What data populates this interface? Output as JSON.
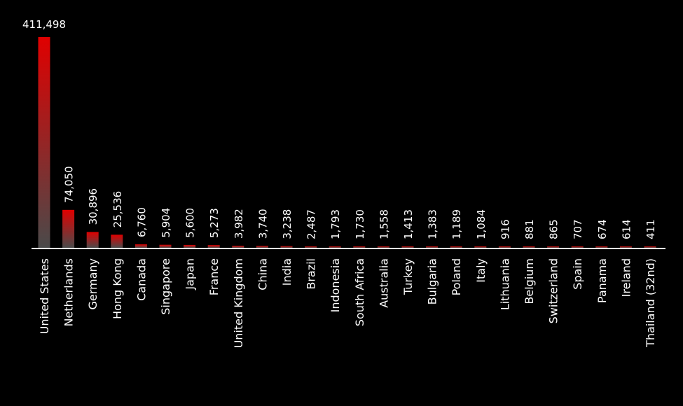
{
  "colors": {
    "background": "#000000",
    "bar_top": "#e00000",
    "bar_bottom": "#4a4a4a",
    "text": "#ffffff",
    "axis": "#ffffff"
  },
  "chart_data": {
    "type": "bar",
    "categories": [
      "United States",
      "Netherlands",
      "Germany",
      "Hong Kong",
      "Canada",
      "Singapore",
      "Japan",
      "France",
      "United Kingdom",
      "China",
      "India",
      "Brazil",
      "Indonesia",
      "South Africa",
      "Australia",
      "Turkey",
      "Bulgaria",
      "Poland",
      "Italy",
      "Lithuania",
      "Belgium",
      "Switzerland",
      "Spain",
      "Panama",
      "Ireland",
      "Thailand (32nd)"
    ],
    "values": [
      411498,
      74050,
      30896,
      25536,
      6760,
      5904,
      5600,
      5273,
      3982,
      3740,
      3238,
      2487,
      1793,
      1730,
      1558,
      1413,
      1383,
      1189,
      1084,
      916,
      881,
      865,
      707,
      674,
      614,
      411
    ],
    "value_labels": [
      "411,498",
      "74,050",
      "30,896",
      "25,536",
      "6,760",
      "5,904",
      "5,600",
      "5,273",
      "3,982",
      "3,740",
      "3,238",
      "2,487",
      "1,793",
      "1,730",
      "1,558",
      "1,413",
      "1,383",
      "1,189",
      "1,084",
      "916",
      "881",
      "865",
      "707",
      "674",
      "614",
      "411"
    ],
    "ylim": [
      0,
      411498
    ],
    "grid": false,
    "legend": "none"
  }
}
